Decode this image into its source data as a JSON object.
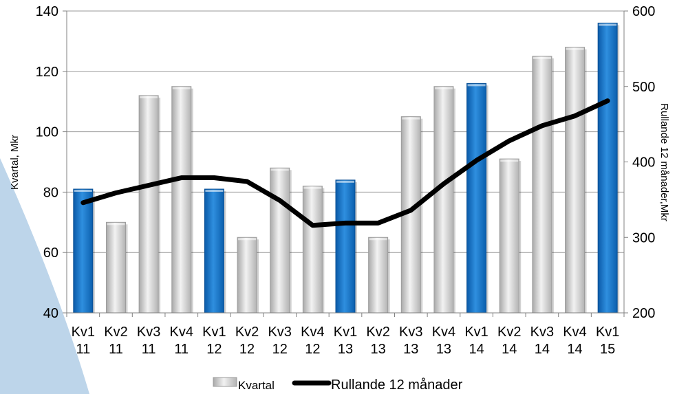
{
  "chart_data": {
    "type": "bar",
    "categories": [
      "Kv1 11",
      "Kv2 11",
      "Kv3 11",
      "Kv4 11",
      "Kv1 12",
      "Kv2 12",
      "Kv3 12",
      "Kv4 12",
      "Kv1 13",
      "Kv2 13",
      "Kv3 13",
      "Kv4 13",
      "Kv1 14",
      "Kv2 14",
      "Kv3 14",
      "Kv4 14",
      "Kv1 15"
    ],
    "category_lines": [
      [
        "Kv1",
        "11"
      ],
      [
        "Kv2",
        "11"
      ],
      [
        "Kv3",
        "11"
      ],
      [
        "Kv4",
        "11"
      ],
      [
        "Kv1",
        "12"
      ],
      [
        "Kv2",
        "12"
      ],
      [
        "Kv3",
        "12"
      ],
      [
        "Kv4",
        "12"
      ],
      [
        "Kv1",
        "13"
      ],
      [
        "Kv2",
        "13"
      ],
      [
        "Kv3",
        "13"
      ],
      [
        "Kv4",
        "13"
      ],
      [
        "Kv1",
        "14"
      ],
      [
        "Kv2",
        "14"
      ],
      [
        "Kv3",
        "14"
      ],
      [
        "Kv4",
        "14"
      ],
      [
        "Kv1",
        "15"
      ]
    ],
    "series": [
      {
        "name": "Kvartal",
        "type": "bar",
        "axis": "left",
        "values": [
          81,
          70,
          112,
          115,
          81,
          65,
          88,
          82,
          84,
          65,
          105,
          115,
          116,
          91,
          125,
          128,
          136
        ]
      },
      {
        "name": "Rullande 12 månader",
        "type": "line",
        "axis": "right",
        "values": [
          346,
          359,
          369,
          379,
          379,
          374,
          349,
          316,
          319,
          319,
          336,
          371,
          402,
          428,
          448,
          461,
          481
        ]
      }
    ],
    "ylabel": "Kvartal,  Mkr",
    "y2label": "Rullande  12 månader,Mkr",
    "ylim": [
      40,
      140
    ],
    "yticks": [
      40,
      60,
      80,
      100,
      120,
      140
    ],
    "y2lim": [
      200,
      600
    ],
    "y2ticks": [
      200,
      300,
      400,
      500,
      600
    ],
    "grid": true,
    "legend_position": "bottom",
    "colors": {
      "bar_gray": "#c8c8c8",
      "bar_highlight": "#1170c4",
      "line": "#000000",
      "background_arc": "#bdd5ea"
    }
  }
}
